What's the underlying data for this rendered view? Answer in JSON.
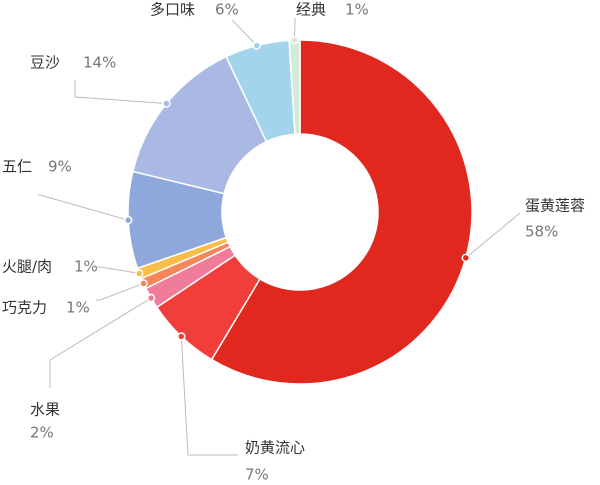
{
  "chart_data": {
    "type": "pie",
    "donut": true,
    "categories": [
      "蛋黄莲蓉",
      "奶黄流心",
      "水果",
      "巧克力",
      "火腿/肉",
      "五仁",
      "豆沙",
      "多口味",
      "经典"
    ],
    "values": [
      58,
      7,
      2,
      1,
      1,
      9,
      14,
      6,
      1
    ],
    "value_labels": [
      "58%",
      "7%",
      "2%",
      "1%",
      "1%",
      "9%",
      "14%",
      "6%",
      "1%"
    ],
    "colors": [
      "#e0281f",
      "#f23e3b",
      "#f07b9a",
      "#f7855a",
      "#f9bd4a",
      "#8fa8dc",
      "#a9b9e4",
      "#a2d4eb",
      "#d3ecd8"
    ]
  }
}
